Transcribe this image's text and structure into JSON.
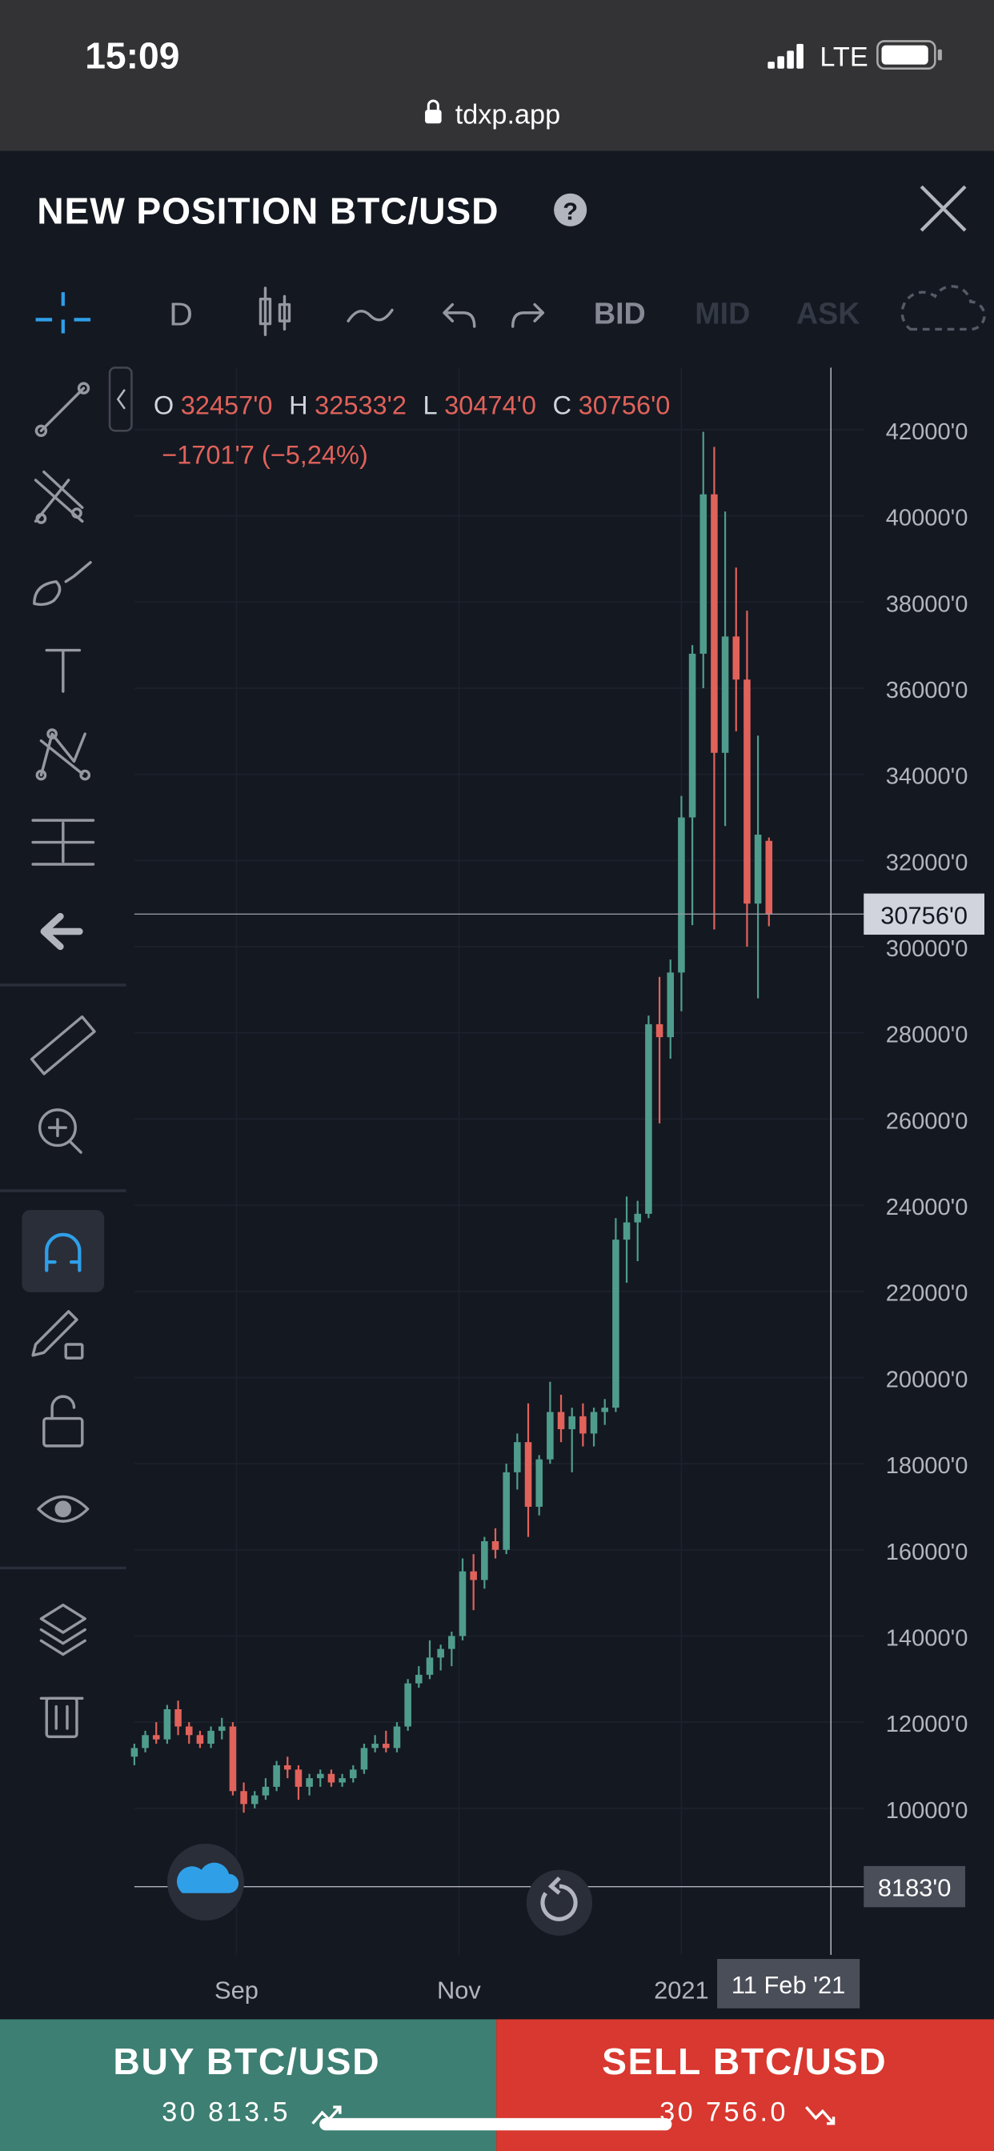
{
  "status_bar": {
    "time": "15:09",
    "network": "LTE",
    "url": "tdxp.app"
  },
  "header": {
    "title": "NEW POSITION BTC/USD"
  },
  "toolbar": {
    "interval": "D",
    "price_types": [
      "BID",
      "MID",
      "ASK"
    ]
  },
  "chart_data": {
    "type": "candlestick",
    "ohlc_legend": [
      {
        "key": "O",
        "value": "32457'0"
      },
      {
        "key": "H",
        "value": "32533'2"
      },
      {
        "key": "L",
        "value": "30474'0"
      },
      {
        "key": "C",
        "value": "30756'0"
      }
    ],
    "change": "−1701'7 (−5,24%)",
    "up_color": "#4f9c8c",
    "down_color": "#e0625a",
    "x": [
      217,
      220,
      223,
      226,
      229,
      232,
      235,
      238,
      241,
      244,
      247,
      250,
      253,
      256,
      259,
      262,
      265,
      268,
      271,
      274,
      277,
      280,
      283,
      286,
      289,
      292,
      295,
      298,
      301,
      304,
      307,
      310,
      313,
      316,
      319,
      322,
      325,
      328,
      331,
      334,
      337,
      340,
      343,
      346,
      349,
      352,
      355,
      358,
      361,
      364,
      367,
      370,
      373,
      376,
      379,
      382,
      385,
      388,
      391
    ],
    "open": [
      11200,
      11400,
      11700,
      11600,
      12300,
      11900,
      11700,
      11500,
      11800,
      11900,
      10400,
      10100,
      10300,
      10500,
      11000,
      10900,
      10500,
      10700,
      10800,
      10600,
      10700,
      10900,
      11400,
      11500,
      11400,
      11900,
      12900,
      13100,
      13500,
      13700,
      14000,
      15500,
      15300,
      16200,
      16000,
      17800,
      18500,
      17000,
      18100,
      19200,
      18800,
      19100,
      18700,
      19200,
      19300,
      23200,
      23600,
      23800,
      28200,
      27900,
      29400,
      33000,
      36800,
      40500,
      34500,
      37200,
      36200,
      31000,
      32457
    ],
    "high": [
      11500,
      11800,
      12000,
      12400,
      12500,
      12000,
      11800,
      11900,
      12100,
      12000,
      10600,
      10400,
      10700,
      11100,
      11200,
      11000,
      10800,
      10900,
      10900,
      10800,
      11000,
      11500,
      11700,
      11800,
      12000,
      13000,
      13300,
      13900,
      13800,
      14100,
      15800,
      15900,
      16300,
      16500,
      18000,
      18700,
      19400,
      18200,
      19900,
      19600,
      19300,
      19400,
      19300,
      19500,
      23700,
      24200,
      24100,
      28400,
      29300,
      29700,
      33500,
      37000,
      41950,
      41600,
      40100,
      38800,
      37800,
      34900,
      32533.2
    ],
    "low": [
      11000,
      11300,
      11500,
      11500,
      11700,
      11500,
      11400,
      11400,
      11600,
      10300,
      9900,
      10000,
      10200,
      10400,
      10700,
      10200,
      10300,
      10500,
      10500,
      10500,
      10600,
      10800,
      11300,
      11300,
      11300,
      11800,
      12800,
      13000,
      13200,
      13300,
      13900,
      14600,
      15100,
      15800,
      15900,
      17400,
      16300,
      16800,
      18000,
      18500,
      17800,
      18400,
      18400,
      18900,
      19200,
      22200,
      22700,
      23700,
      25900,
      27400,
      28500,
      30500,
      36000,
      30400,
      32800,
      35000,
      30000,
      28800,
      30474
    ],
    "close": [
      11400,
      11700,
      11600,
      12300,
      11900,
      11700,
      11500,
      11800,
      11900,
      10400,
      10100,
      10300,
      10500,
      11000,
      10900,
      10500,
      10700,
      10800,
      10600,
      10700,
      10900,
      11400,
      11500,
      11400,
      11900,
      12900,
      13100,
      13500,
      13700,
      14000,
      15500,
      15300,
      16200,
      16000,
      17800,
      18500,
      17000,
      18100,
      19200,
      18800,
      19100,
      18700,
      19200,
      19300,
      23200,
      23600,
      23800,
      28200,
      27900,
      29400,
      33000,
      36800,
      40500,
      34500,
      37200,
      36200,
      31000,
      32600,
      30756
    ],
    "xlim": [
      217,
      417
    ],
    "ylim": [
      6600,
      43440
    ],
    "xticks": [
      {
        "value": 245,
        "label": "Sep"
      },
      {
        "value": 306,
        "label": "Nov"
      },
      {
        "value": 367,
        "label": "2021"
      }
    ],
    "yticks": [
      {
        "value": 10000,
        "label": "10000'0"
      },
      {
        "value": 12000,
        "label": "12000'0"
      },
      {
        "value": 14000,
        "label": "14000'0"
      },
      {
        "value": 16000,
        "label": "16000'0"
      },
      {
        "value": 18000,
        "label": "18000'0"
      },
      {
        "value": 20000,
        "label": "20000'0"
      },
      {
        "value": 22000,
        "label": "22000'0"
      },
      {
        "value": 24000,
        "label": "24000'0"
      },
      {
        "value": 26000,
        "label": "26000'0"
      },
      {
        "value": 28000,
        "label": "28000'0"
      },
      {
        "value": 30000,
        "label": "30000'0"
      },
      {
        "value": 32000,
        "label": "32000'0"
      },
      {
        "value": 34000,
        "label": "34000'0"
      },
      {
        "value": 36000,
        "label": "36000'0"
      },
      {
        "value": 38000,
        "label": "38000'0"
      },
      {
        "value": 40000,
        "label": "40000'0"
      },
      {
        "value": 42000,
        "label": "42000'0"
      }
    ],
    "grid": true,
    "crosshair_x": {
      "value": 408,
      "label": "11 Feb '21"
    },
    "price_lines": [
      {
        "value": 30756,
        "label": "30756'0"
      },
      {
        "value": 8183,
        "label": "8183'0"
      }
    ]
  },
  "buy": {
    "label": "BUY BTC/USD",
    "price": "30 813.5"
  },
  "sell": {
    "label": "SELL BTC/USD",
    "price": "30 756.0"
  }
}
